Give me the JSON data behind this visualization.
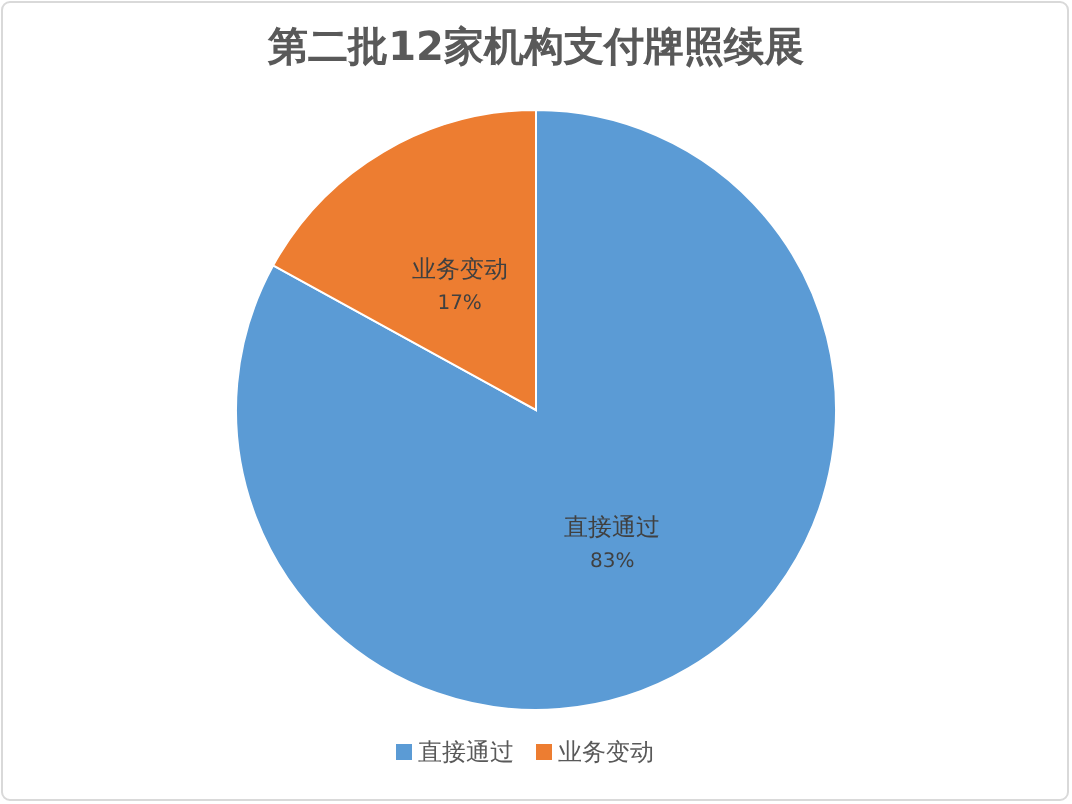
{
  "chart_data": {
    "type": "pie",
    "title": "第二批12家机构支付牌照续展",
    "categories": [
      "直接通过",
      "业务变动"
    ],
    "values": [
      83,
      17
    ],
    "colors": [
      "#5b9bd5",
      "#ed7d31"
    ],
    "value_labels": [
      "83%",
      "17%"
    ],
    "legend": "bottom"
  }
}
